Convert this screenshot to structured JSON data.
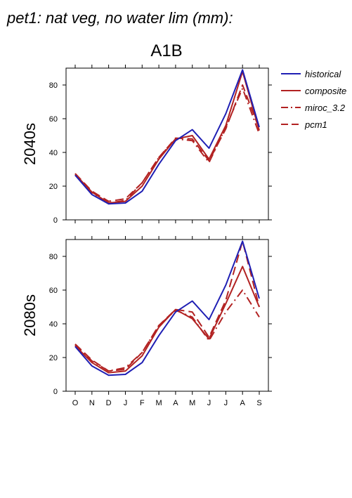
{
  "title": "pet1: nat veg, no water lim (mm):",
  "scenario": "A1B",
  "chart_data": {
    "type": "line",
    "categories": [
      "O",
      "N",
      "D",
      "J",
      "F",
      "M",
      "A",
      "M",
      "J",
      "J",
      "A",
      "S"
    ],
    "ylim": [
      0,
      90
    ],
    "yticks": [
      0,
      20,
      40,
      60,
      80
    ],
    "grid": false,
    "legend_position": "top-right",
    "legend": [
      {
        "name": "historical",
        "color": "#1f1fb4",
        "dash": "solid"
      },
      {
        "name": "composite",
        "color": "#b22222",
        "dash": "solid"
      },
      {
        "name": "miroc_3.2",
        "color": "#b22222",
        "dash": "dashdot"
      },
      {
        "name": "pcm1",
        "color": "#b22222",
        "dash": "dash"
      }
    ],
    "panels": [
      {
        "ylabel": "2040s",
        "series": [
          {
            "name": "historical",
            "values": [
              26.5,
              15,
              9.5,
              10,
              17,
              33,
              47,
              53.5,
              42.5,
              63,
              89,
              55
            ]
          },
          {
            "name": "composite",
            "values": [
              27,
              16.5,
              10,
              11,
              20,
              36,
              48,
              50,
              36,
              56,
              88,
              53
            ]
          },
          {
            "name": "miroc_3.2",
            "values": [
              26.5,
              16,
              10,
              11.5,
              22,
              37,
              48,
              47,
              34,
              55,
              78,
              51
            ]
          },
          {
            "name": "pcm1",
            "values": [
              27.5,
              17,
              11,
              12.5,
              22,
              37,
              48.5,
              48,
              35,
              54,
              80,
              54
            ]
          }
        ]
      },
      {
        "ylabel": "2080s",
        "series": [
          {
            "name": "historical",
            "values": [
              26.5,
              15,
              9.5,
              10,
              17,
              33,
              47,
              53.5,
              42.5,
              63,
              89,
              55
            ]
          },
          {
            "name": "composite",
            "values": [
              27,
              17,
              11,
              12,
              21,
              38,
              48.5,
              43,
              31,
              52,
              74,
              50
            ]
          },
          {
            "name": "miroc_3.2",
            "values": [
              27.5,
              18,
              12,
              14,
              23,
              39,
              48,
              44,
              30,
              47,
              60,
              44
            ]
          },
          {
            "name": "pcm1",
            "values": [
              28,
              18.5,
              12,
              13,
              23,
              39,
              48.5,
              47,
              32,
              54,
              89,
              50
            ]
          }
        ]
      }
    ]
  }
}
